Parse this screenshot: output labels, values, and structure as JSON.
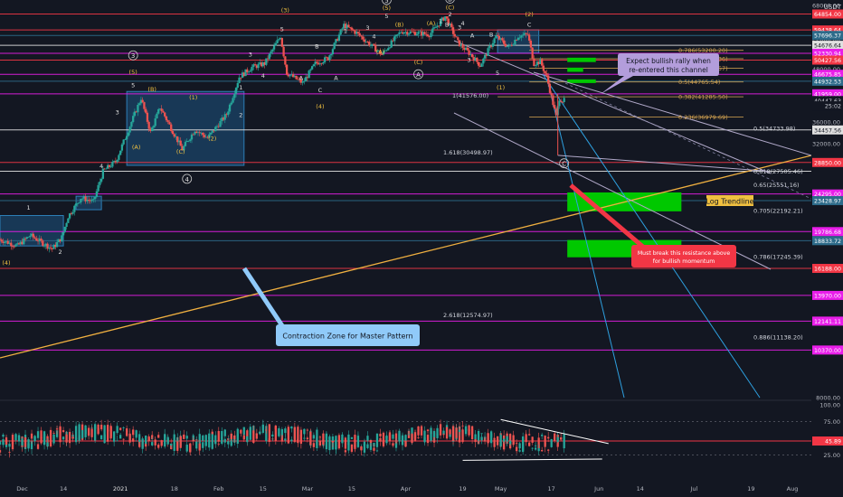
{
  "currency": "USDT",
  "colors": {
    "background": "#131722",
    "candle_up": "#26a69a",
    "candle_down": "#ef5350",
    "magenta": "#e91ee9",
    "red_line": "#f23645",
    "fib": "#d0a050",
    "wave_label": "#f0c040",
    "box_blue": "#1e5a8a",
    "green_zone": "#00c800",
    "trendline": "#f0b040",
    "channel": "#b0a8c8",
    "blue_ray": "#2ea0e0",
    "rsi_line": "#c0c0c0"
  },
  "price_axis": {
    "ticks": [
      "68000.00",
      "60000.00",
      "56000.00",
      "48000.00",
      "40000.00",
      "36000.00",
      "32000.00",
      "24000.00",
      "8000.00"
    ],
    "badges": [
      {
        "text": "64854.00",
        "value": 64854,
        "bg": "#f23645",
        "fg": "#ffffff"
      },
      {
        "text": "59438.64",
        "value": 59438.64,
        "bg": "#f23645",
        "fg": "#ffffff"
      },
      {
        "text": "57696.37",
        "value": 57696.37,
        "bg": "#2d6b8a",
        "fg": "#ffffff"
      },
      {
        "text": "54676.64",
        "value": 54676.64,
        "bg": "#e0e0e0",
        "fg": "#131722"
      },
      {
        "text": "52330.94",
        "value": 52330.94,
        "bg": "#e91ee9",
        "fg": "#ffffff"
      },
      {
        "text": "50427.56",
        "value": 50427.56,
        "bg": "#f23645",
        "fg": "#ffffff"
      },
      {
        "text": "46675.85",
        "value": 46675.85,
        "bg": "#e91ee9",
        "fg": "#ffffff"
      },
      {
        "text": "44932.53",
        "value": 44932.53,
        "bg": "#2d6b8a",
        "fg": "#ffffff"
      },
      {
        "text": "41959.00",
        "value": 41959,
        "bg": "#e91ee9",
        "fg": "#ffffff"
      },
      {
        "text": "40447.63",
        "value": 40447.63,
        "bg": "#131722",
        "fg": "#d1d4dc"
      },
      {
        "text": "25:02",
        "value": 39300,
        "bg": "#131722",
        "fg": "#d1d4dc"
      },
      {
        "text": "34457.56",
        "value": 34457.56,
        "bg": "#e0e0e0",
        "fg": "#131722"
      },
      {
        "text": "28850.00",
        "value": 28850,
        "bg": "#f23645",
        "fg": "#ffffff"
      },
      {
        "text": "24295.00",
        "value": 24295,
        "bg": "#e91ee9",
        "fg": "#ffffff"
      },
      {
        "text": "23428.97",
        "value": 23428.97,
        "bg": "#2d6b8a",
        "fg": "#ffffff"
      },
      {
        "text": "19786.68",
        "value": 19786.68,
        "bg": "#e91ee9",
        "fg": "#ffffff"
      },
      {
        "text": "18833.72",
        "value": 18833.72,
        "bg": "#2d6b8a",
        "fg": "#ffffff"
      },
      {
        "text": "16188.00",
        "value": 16188,
        "bg": "#f23645",
        "fg": "#ffffff"
      },
      {
        "text": "13970.00",
        "value": 13970,
        "bg": "#e91ee9",
        "fg": "#ffffff"
      },
      {
        "text": "12141.11",
        "value": 12141.11,
        "bg": "#e91ee9",
        "fg": "#ffffff"
      },
      {
        "text": "10370.00",
        "value": 10370,
        "bg": "#e91ee9",
        "fg": "#ffffff"
      }
    ]
  },
  "rsi_axis": {
    "ticks": [
      "100.00",
      "75.00",
      "25.00"
    ],
    "badge": {
      "text": "45.89",
      "value": 45.89
    }
  },
  "time_axis": {
    "ticks": [
      "Dec",
      "14",
      "2021",
      "18",
      "Feb",
      "15",
      "Mar",
      "15",
      "Apr",
      "19",
      "May",
      "17",
      "Jun",
      "14",
      "Jul",
      "19",
      "Aug"
    ]
  },
  "annotations": {
    "callout_top": [
      "Expect bullish rally when",
      "re-entered this channel"
    ],
    "callout_contraction": "Contraction Zone for Master Pattern",
    "callout_red": [
      "Must break this resistance above",
      "for bullish momentum"
    ],
    "log_trendline": "Log Trendline"
  },
  "fib_labels": [
    {
      "text": "0.786(53200.20)",
      "value": 53200.2,
      "align": "right"
    },
    {
      "text": "0.705(50811.36)",
      "value": 50811.36,
      "align": "right"
    },
    {
      "text": "0.618(48245.57)",
      "value": 48245.57,
      "align": "right"
    },
    {
      "text": "0.5(44765.54)",
      "value": 44765.54,
      "align": "right"
    },
    {
      "text": "1(41576.00)",
      "value": 41576,
      "align": "left"
    },
    {
      "text": "0.382(41285.50)",
      "value": 41285.5,
      "align": "right"
    },
    {
      "text": "0.236(36979.69)",
      "value": 36979.69,
      "align": "right"
    },
    {
      "text": "0.5(34733.98)",
      "value": 34733.98,
      "align": "right"
    },
    {
      "text": "1.618(30498.97)",
      "value": 30498.97,
      "align": "left"
    },
    {
      "text": "0.618(27505.46)",
      "value": 27505.46,
      "align": "right"
    },
    {
      "text": "0.65(25551.16)",
      "value": 25551.16,
      "align": "right"
    },
    {
      "text": "0.705(22192.21)",
      "value": 22192.21,
      "align": "right"
    },
    {
      "text": "0.786(17245.39)",
      "value": 17245.39,
      "align": "right"
    },
    {
      "text": "2.618(12574.97)",
      "value": 12574.97,
      "align": "left"
    },
    {
      "text": "0.886(11138.20)",
      "value": 11138.2,
      "align": "right"
    }
  ],
  "wave_labels": [
    {
      "text": "(4)",
      "date": "2020-11-26",
      "price": 16500
    },
    {
      "text": "1",
      "date": "2020-12-03",
      "price": 22300
    },
    {
      "text": "2",
      "date": "2020-12-13",
      "price": 17500
    },
    {
      "text": "3",
      "date": "2020-12-31",
      "price": 37500
    },
    {
      "text": "4",
      "date": "2020-12-26",
      "price": 28000
    },
    {
      "text": "5",
      "date": "2021-01-05",
      "price": 43500
    },
    {
      "text": "(5)",
      "date": "2021-01-05",
      "price": 46700
    },
    {
      "text": "3",
      "date": "2021-01-05",
      "price": 51000,
      "circled": true
    },
    {
      "text": "(B)",
      "date": "2021-01-11",
      "price": 42500
    },
    {
      "text": "(A)",
      "date": "2021-01-06",
      "price": 31000
    },
    {
      "text": "(C)",
      "date": "2021-01-20",
      "price": 30300
    },
    {
      "text": "(1)",
      "date": "2021-01-24",
      "price": 40700
    },
    {
      "text": "(2)",
      "date": "2021-01-30",
      "price": 32500
    },
    {
      "text": "4",
      "date": "2021-01-22",
      "price": 26000,
      "circled": true
    },
    {
      "text": "1",
      "date": "2021-02-08",
      "price": 43000
    },
    {
      "text": "2",
      "date": "2021-02-08",
      "price": 37000
    },
    {
      "text": "3",
      "date": "2021-02-11",
      "price": 51500
    },
    {
      "text": "4",
      "date": "2021-02-15",
      "price": 45800
    },
    {
      "text": "5",
      "date": "2021-02-21",
      "price": 59000
    },
    {
      "text": "(3)",
      "date": "2021-02-22",
      "price": 65500
    },
    {
      "text": "A",
      "date": "2021-02-27",
      "price": 45300
    },
    {
      "text": "B",
      "date": "2021-03-04",
      "price": 53800
    },
    {
      "text": "C",
      "date": "2021-03-05",
      "price": 42300
    },
    {
      "text": "(4)",
      "date": "2021-03-05",
      "price": 38700
    },
    {
      "text": "A",
      "date": "2021-03-10",
      "price": 45300
    },
    {
      "text": "1",
      "date": "2021-03-13",
      "price": 58500
    },
    {
      "text": "3",
      "date": "2021-03-20",
      "price": 59500
    },
    {
      "text": "4",
      "date": "2021-03-22",
      "price": 56800
    },
    {
      "text": "5",
      "date": "2021-03-26",
      "price": 63500
    },
    {
      "text": "(5)",
      "date": "2021-03-26",
      "price": 66300
    },
    {
      "text": "5",
      "date": "2021-03-26",
      "price": 69000,
      "circled": true
    },
    {
      "text": "(B)",
      "date": "2021-03-30",
      "price": 60500
    },
    {
      "text": "(A)",
      "date": "2021-03-24",
      "price": 52200
    },
    {
      "text": "(C)",
      "date": "2021-04-05",
      "price": 49300
    },
    {
      "text": "A",
      "date": "2021-04-05",
      "price": 46000,
      "circled": true
    },
    {
      "text": "(A)",
      "date": "2021-04-09",
      "price": 61000
    },
    {
      "text": "B",
      "date": "2021-04-14",
      "price": 60500
    },
    {
      "text": "(C)",
      "date": "2021-04-15",
      "price": 66500
    },
    {
      "text": "B",
      "date": "2021-04-15",
      "price": 69500,
      "circled": true
    },
    {
      "text": "1",
      "date": "2021-04-12",
      "price": 61800
    },
    {
      "text": "2",
      "date": "2021-04-15",
      "price": 64000
    },
    {
      "text": "3",
      "date": "2021-04-18",
      "price": 59600
    },
    {
      "text": "4",
      "date": "2021-04-19",
      "price": 61000
    },
    {
      "text": "A",
      "date": "2021-04-22",
      "price": 57000
    },
    {
      "text": "B",
      "date": "2021-04-28",
      "price": 57300
    },
    {
      "text": "3",
      "date": "2021-04-21",
      "price": 50000
    },
    {
      "text": "5",
      "date": "2021-04-30",
      "price": 46500
    },
    {
      "text": "(1)",
      "date": "2021-05-01",
      "price": 43000
    },
    {
      "text": "(2)",
      "date": "2021-05-10",
      "price": 64000
    },
    {
      "text": "C",
      "date": "2021-05-10",
      "price": 60500
    },
    {
      "text": "C",
      "date": "2021-05-21",
      "price": 28300,
      "circled": true
    }
  ],
  "chart_data": {
    "type": "candlestick",
    "symbol_quote": "USDT",
    "y_scale": "log",
    "y_range": [
      8000,
      70000
    ],
    "x_range": [
      "2020-11-24",
      "2021-08-07"
    ],
    "price_path": [
      {
        "date": "2020-11-24",
        "price": 19000
      },
      {
        "date": "2020-11-30",
        "price": 18300
      },
      {
        "date": "2020-12-04",
        "price": 19400
      },
      {
        "date": "2020-12-11",
        "price": 18000
      },
      {
        "date": "2020-12-14",
        "price": 19200
      },
      {
        "date": "2020-12-16",
        "price": 21500
      },
      {
        "date": "2020-12-20",
        "price": 23800
      },
      {
        "date": "2020-12-24",
        "price": 23300
      },
      {
        "date": "2020-12-27",
        "price": 27500
      },
      {
        "date": "2020-12-31",
        "price": 29000
      },
      {
        "date": "2021-01-03",
        "price": 33000
      },
      {
        "date": "2021-01-08",
        "price": 41000
      },
      {
        "date": "2021-01-11",
        "price": 34000
      },
      {
        "date": "2021-01-14",
        "price": 39000
      },
      {
        "date": "2021-01-21",
        "price": 31000
      },
      {
        "date": "2021-01-25",
        "price": 34500
      },
      {
        "date": "2021-01-29",
        "price": 33000
      },
      {
        "date": "2021-02-04",
        "price": 37500
      },
      {
        "date": "2021-02-08",
        "price": 46000
      },
      {
        "date": "2021-02-12",
        "price": 48500
      },
      {
        "date": "2021-02-16",
        "price": 49500
      },
      {
        "date": "2021-02-21",
        "price": 57500
      },
      {
        "date": "2021-02-23",
        "price": 47000
      },
      {
        "date": "2021-02-28",
        "price": 44500
      },
      {
        "date": "2021-03-04",
        "price": 49500
      },
      {
        "date": "2021-03-08",
        "price": 51000
      },
      {
        "date": "2021-03-13",
        "price": 61000
      },
      {
        "date": "2021-03-17",
        "price": 58500
      },
      {
        "date": "2021-03-25",
        "price": 52000
      },
      {
        "date": "2021-03-31",
        "price": 59000
      },
      {
        "date": "2021-04-05",
        "price": 58500
      },
      {
        "date": "2021-04-09",
        "price": 58000
      },
      {
        "date": "2021-04-14",
        "price": 64000
      },
      {
        "date": "2021-04-18",
        "price": 55500
      },
      {
        "date": "2021-04-22",
        "price": 52000
      },
      {
        "date": "2021-04-25",
        "price": 49000
      },
      {
        "date": "2021-04-30",
        "price": 57500
      },
      {
        "date": "2021-05-04",
        "price": 54000
      },
      {
        "date": "2021-05-07",
        "price": 57500
      },
      {
        "date": "2021-05-10",
        "price": 58000
      },
      {
        "date": "2021-05-12",
        "price": 49500
      },
      {
        "date": "2021-05-14",
        "price": 50000
      },
      {
        "date": "2021-05-16",
        "price": 46000
      },
      {
        "date": "2021-05-19",
        "price": 37000
      },
      {
        "date": "2021-05-20",
        "price": 41000
      },
      {
        "date": "2021-05-21",
        "price": 40447.63
      }
    ],
    "key_points": {
      "high": {
        "date": "2021-04-14",
        "price": 64854
      },
      "low": {
        "date": "2021-05-19",
        "price": 30000
      },
      "last": {
        "date": "2021-05-21",
        "price": 40447.63
      }
    },
    "horizontal_levels": [
      {
        "price": 64854,
        "color": "#f23645"
      },
      {
        "price": 59438.64,
        "color": "#f23645"
      },
      {
        "price": 57696.37,
        "color": "#2d6b8a"
      },
      {
        "price": 54676.64,
        "color": "#e0e0e0"
      },
      {
        "price": 52330.94,
        "color": "#e91ee9"
      },
      {
        "price": 50427.56,
        "color": "#f23645"
      },
      {
        "price": 46675.85,
        "color": "#e91ee9"
      },
      {
        "price": 44932.53,
        "color": "#2d6b8a"
      },
      {
        "price": 41959,
        "color": "#e91ee9"
      },
      {
        "price": 34457.56,
        "color": "#e0e0e0"
      },
      {
        "price": 28850,
        "color": "#f23645"
      },
      {
        "price": 27505.46,
        "color": "#e0e0e0"
      },
      {
        "price": 24295,
        "color": "#e91ee9"
      },
      {
        "price": 23428.97,
        "color": "#2d6b8a"
      },
      {
        "price": 19786.68,
        "color": "#e91ee9"
      },
      {
        "price": 18833.72,
        "color": "#2d6b8a"
      },
      {
        "price": 16188,
        "color": "#f23645"
      },
      {
        "price": 13970,
        "color": "#e91ee9"
      },
      {
        "price": 12141.11,
        "color": "#e91ee9"
      },
      {
        "price": 10370,
        "color": "#e91ee9"
      }
    ],
    "green_zones": [
      {
        "from": "2021-05-22",
        "to": "2021-05-31",
        "low": 49900,
        "high": 51100
      },
      {
        "from": "2021-05-22",
        "to": "2021-05-27",
        "low": 47300,
        "high": 48400
      },
      {
        "from": "2021-05-22",
        "to": "2021-05-31",
        "low": 44500,
        "high": 45400
      },
      {
        "from": "2021-05-22",
        "to": "2021-06-27",
        "low": 22100,
        "high": 24500
      },
      {
        "from": "2021-05-22",
        "to": "2021-06-27",
        "low": 17200,
        "high": 18900
      }
    ],
    "rsi": {
      "range": [
        0,
        100
      ],
      "levels": [
        75,
        25
      ],
      "last": 45.89,
      "upper_trend": [
        {
          "date": "2021-05-01",
          "value": 78
        },
        {
          "date": "2021-06-04",
          "value": 42
        }
      ],
      "lower_trend": [
        {
          "date": "2021-04-19",
          "value": 17
        },
        {
          "date": "2021-06-02",
          "value": 19
        }
      ]
    }
  }
}
